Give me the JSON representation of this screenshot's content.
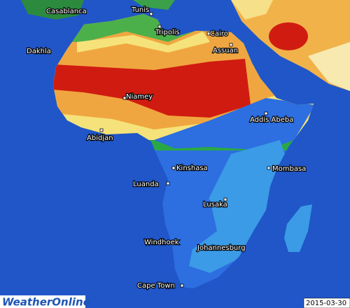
{
  "map": {
    "cities": [
      {
        "label": "Casablanca"
      },
      {
        "label": "Tunis"
      },
      {
        "label": "Tripolis"
      },
      {
        "label": "Cairo"
      },
      {
        "label": "Assuan"
      },
      {
        "label": "Dakhla"
      },
      {
        "label": "Niamey"
      },
      {
        "label": "Abidjan"
      },
      {
        "label": "Addis Abeba"
      },
      {
        "label": "Kinshasa"
      },
      {
        "label": "Mombasa"
      },
      {
        "label": "Luanda"
      },
      {
        "label": "Lusaka"
      },
      {
        "label": "Windhoek"
      },
      {
        "label": "Johannesburg"
      },
      {
        "label": "Cape Town"
      }
    ],
    "logo": "WeatherOnline",
    "date": "2015-03-30"
  }
}
